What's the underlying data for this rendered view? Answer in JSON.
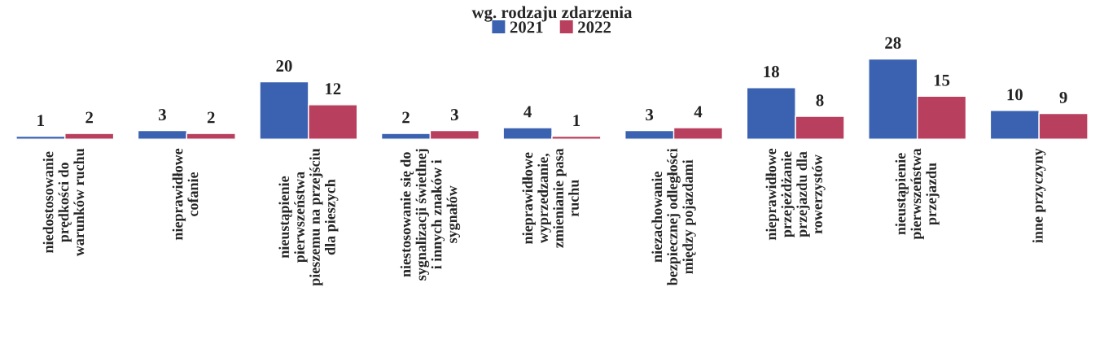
{
  "chart_data": {
    "type": "bar",
    "title": "wg. rodzaju zdarzenia",
    "categories": [
      "niedostosowanie\nprędkości do\nwarunków ruchu",
      "nieprawidłowe\ncofanie",
      "nieustąpienie\npierwszeństwa\npieszemu na przejściu\ndla pieszych",
      "niestosowanie się do\nsygnalizacji świetlnej\ni innych znaków i\nsygnałów",
      "nieprawidłowe\nwyprzedzanie,\nzmienianie pasa\nruchu",
      "niezachowanie\nbezpiecznej odległości\nmiędzy pojazdami",
      "nieprawidłowe\nprzejeżdżanie\nprzejazdu dla\nrowerzystów",
      "nieustąpienie\npierwszeństwa\nprzejazdu",
      "inne przyczyny"
    ],
    "series": [
      {
        "name": "2021",
        "color": "#3a62b0",
        "values": [
          1,
          3,
          20,
          2,
          4,
          3,
          18,
          28,
          10
        ]
      },
      {
        "name": "2022",
        "color": "#b8405e",
        "values": [
          2,
          2,
          12,
          3,
          1,
          4,
          8,
          15,
          9
        ]
      }
    ],
    "data_labels": true,
    "legend": "top",
    "grid": false
  }
}
